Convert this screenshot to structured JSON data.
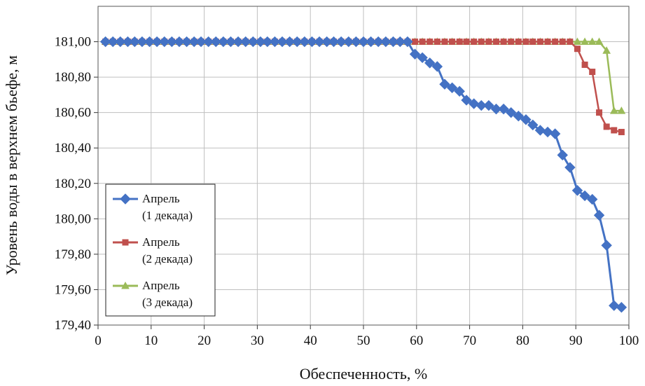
{
  "chart_data": {
    "type": "line",
    "xlabel": "Обеспеченность, %",
    "ylabel": "Уровень воды в верхнем бьефе, м",
    "xlim": [
      0,
      100
    ],
    "ylim": [
      179.4,
      181.2
    ],
    "x_ticks": [
      0,
      10,
      20,
      30,
      40,
      50,
      60,
      70,
      80,
      90,
      100
    ],
    "x_tick_labels": [
      "0",
      "10",
      "20",
      "30",
      "40",
      "50",
      "60",
      "70",
      "80",
      "90",
      "100"
    ],
    "y_ticks": [
      179.4,
      179.6,
      179.8,
      180.0,
      180.2,
      180.4,
      180.6,
      180.8,
      181.0
    ],
    "y_tick_labels": [
      "179,40",
      "179,60",
      "179,80",
      "180,00",
      "180,20",
      "180,40",
      "180,60",
      "180,80",
      "181,00"
    ],
    "grid": true,
    "legend": {
      "placement": "left-middle",
      "entries": [
        {
          "line1": "Апрель",
          "line2": "(1 декада)",
          "color": "#4472C4",
          "marker": "diamond"
        },
        {
          "line1": "Апрель",
          "line2": "(2 декада)",
          "color": "#C0504D",
          "marker": "square"
        },
        {
          "line1": "Апрель",
          "line2": "(3 декада)",
          "color": "#9BBB59",
          "marker": "triangle"
        }
      ]
    },
    "series": [
      {
        "color": "#4472C4",
        "marker": "diamond",
        "x": [
          1.4,
          2.8,
          4.2,
          5.6,
          6.9,
          8.3,
          9.7,
          11.1,
          12.5,
          13.9,
          15.3,
          16.7,
          18.1,
          19.4,
          20.8,
          22.2,
          23.6,
          25.0,
          26.4,
          27.8,
          29.2,
          30.6,
          31.9,
          33.3,
          34.7,
          36.1,
          37.5,
          38.9,
          40.3,
          41.7,
          43.1,
          44.4,
          45.8,
          47.2,
          48.6,
          50.0,
          51.4,
          52.8,
          54.2,
          55.6,
          56.9,
          58.3,
          59.7,
          61.1,
          62.5,
          63.9,
          65.3,
          66.7,
          68.1,
          69.4,
          70.8,
          72.2,
          73.6,
          75.0,
          76.4,
          77.8,
          79.2,
          80.6,
          81.9,
          83.3,
          84.7,
          86.1,
          87.5,
          88.9,
          90.3,
          91.7,
          93.1,
          94.4,
          95.8,
          97.2,
          98.6
        ],
        "y": [
          181.0,
          181.0,
          181.0,
          181.0,
          181.0,
          181.0,
          181.0,
          181.0,
          181.0,
          181.0,
          181.0,
          181.0,
          181.0,
          181.0,
          181.0,
          181.0,
          181.0,
          181.0,
          181.0,
          181.0,
          181.0,
          181.0,
          181.0,
          181.0,
          181.0,
          181.0,
          181.0,
          181.0,
          181.0,
          181.0,
          181.0,
          181.0,
          181.0,
          181.0,
          181.0,
          181.0,
          181.0,
          181.0,
          181.0,
          181.0,
          181.0,
          181.0,
          180.93,
          180.91,
          180.88,
          180.86,
          180.76,
          180.74,
          180.72,
          180.67,
          180.65,
          180.64,
          180.64,
          180.62,
          180.62,
          180.6,
          180.58,
          180.56,
          180.53,
          180.5,
          180.49,
          180.48,
          180.36,
          180.29,
          180.16,
          180.13,
          180.11,
          180.02,
          179.85,
          179.51,
          179.5
        ]
      },
      {
        "color": "#C0504D",
        "marker": "square",
        "x": [
          1.4,
          2.8,
          4.2,
          5.6,
          6.9,
          8.3,
          9.7,
          11.1,
          12.5,
          13.9,
          15.3,
          16.7,
          18.1,
          19.4,
          20.8,
          22.2,
          23.6,
          25.0,
          26.4,
          27.8,
          29.2,
          30.6,
          31.9,
          33.3,
          34.7,
          36.1,
          37.5,
          38.9,
          40.3,
          41.7,
          43.1,
          44.4,
          45.8,
          47.2,
          48.6,
          50.0,
          51.4,
          52.8,
          54.2,
          55.6,
          56.9,
          58.3,
          59.7,
          61.1,
          62.5,
          63.9,
          65.3,
          66.7,
          68.1,
          69.4,
          70.8,
          72.2,
          73.6,
          75.0,
          76.4,
          77.8,
          79.2,
          80.6,
          81.9,
          83.3,
          84.7,
          86.1,
          87.5,
          88.9,
          90.3,
          91.7,
          93.1,
          94.4,
          95.8,
          97.2,
          98.6
        ],
        "y": [
          181.0,
          181.0,
          181.0,
          181.0,
          181.0,
          181.0,
          181.0,
          181.0,
          181.0,
          181.0,
          181.0,
          181.0,
          181.0,
          181.0,
          181.0,
          181.0,
          181.0,
          181.0,
          181.0,
          181.0,
          181.0,
          181.0,
          181.0,
          181.0,
          181.0,
          181.0,
          181.0,
          181.0,
          181.0,
          181.0,
          181.0,
          181.0,
          181.0,
          181.0,
          181.0,
          181.0,
          181.0,
          181.0,
          181.0,
          181.0,
          181.0,
          181.0,
          181.0,
          181.0,
          181.0,
          181.0,
          181.0,
          181.0,
          181.0,
          181.0,
          181.0,
          181.0,
          181.0,
          181.0,
          181.0,
          181.0,
          181.0,
          181.0,
          181.0,
          181.0,
          181.0,
          181.0,
          181.0,
          181.0,
          180.96,
          180.87,
          180.83,
          180.6,
          180.52,
          180.5,
          180.49
        ]
      },
      {
        "color": "#9BBB59",
        "marker": "triangle",
        "x": [
          1.4,
          2.8,
          4.2,
          5.6,
          6.9,
          8.3,
          9.7,
          11.1,
          12.5,
          13.9,
          15.3,
          16.7,
          18.1,
          19.4,
          20.8,
          22.2,
          23.6,
          25.0,
          26.4,
          27.8,
          29.2,
          30.6,
          31.9,
          33.3,
          34.7,
          36.1,
          37.5,
          38.9,
          40.3,
          41.7,
          43.1,
          44.4,
          45.8,
          47.2,
          48.6,
          50.0,
          51.4,
          52.8,
          54.2,
          55.6,
          56.9,
          58.3,
          59.7,
          61.1,
          62.5,
          63.9,
          65.3,
          66.7,
          68.1,
          69.4,
          70.8,
          72.2,
          73.6,
          75.0,
          76.4,
          77.8,
          79.2,
          80.6,
          81.9,
          83.3,
          84.7,
          86.1,
          87.5,
          88.9,
          90.3,
          91.7,
          93.1,
          94.4,
          95.8,
          97.2,
          98.6
        ],
        "y": [
          181.0,
          181.0,
          181.0,
          181.0,
          181.0,
          181.0,
          181.0,
          181.0,
          181.0,
          181.0,
          181.0,
          181.0,
          181.0,
          181.0,
          181.0,
          181.0,
          181.0,
          181.0,
          181.0,
          181.0,
          181.0,
          181.0,
          181.0,
          181.0,
          181.0,
          181.0,
          181.0,
          181.0,
          181.0,
          181.0,
          181.0,
          181.0,
          181.0,
          181.0,
          181.0,
          181.0,
          181.0,
          181.0,
          181.0,
          181.0,
          181.0,
          181.0,
          181.0,
          181.0,
          181.0,
          181.0,
          181.0,
          181.0,
          181.0,
          181.0,
          181.0,
          181.0,
          181.0,
          181.0,
          181.0,
          181.0,
          181.0,
          181.0,
          181.0,
          181.0,
          181.0,
          181.0,
          181.0,
          181.0,
          181.0,
          181.0,
          181.0,
          181.0,
          180.95,
          180.61,
          180.61
        ]
      }
    ]
  }
}
